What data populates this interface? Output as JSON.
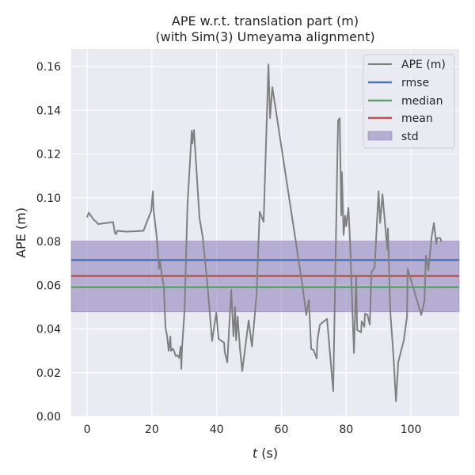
{
  "chart_data": {
    "type": "line",
    "title": "APE w.r.t. translation part (m)",
    "subtitle": "(with Sim(3) Umeyama alignment)",
    "xlabel_italic": "t",
    "xlabel_rest": " (s)",
    "ylabel": "APE (m)",
    "xlim": [
      -4.9,
      114.9
    ],
    "ylim": [
      0,
      0.168
    ],
    "xticks": [
      0,
      20,
      40,
      60,
      80,
      100
    ],
    "xtick_labels": [
      "0",
      "20",
      "40",
      "60",
      "80",
      "100"
    ],
    "yticks": [
      0,
      0.02,
      0.04,
      0.06,
      0.08,
      0.1,
      0.12,
      0.14,
      0.16
    ],
    "ytick_labels": [
      "0.00",
      "0.02",
      "0.04",
      "0.06",
      "0.08",
      "0.10",
      "0.12",
      "0.14",
      "0.16"
    ],
    "grid": true,
    "legend_position": "top-right",
    "legend": [
      "APE (m)",
      "rmse",
      "median",
      "mean",
      "std"
    ],
    "stats": {
      "rmse": 0.0715,
      "median": 0.0591,
      "mean": 0.0642,
      "std_low": 0.0479,
      "std_high": 0.0802
    },
    "colors": {
      "ape": "#808080",
      "rmse": "#4c72b0",
      "median": "#55a868",
      "mean": "#c44e52",
      "std": "#8172b2",
      "plot_bg": "#eaeaf2"
    },
    "series": [
      {
        "name": "APE (m)",
        "t": [
          0,
          0.5,
          1.2,
          2,
          2.7,
          3.4,
          8,
          8.6,
          9,
          9.3,
          12.2,
          17.4,
          19.8,
          20.3,
          20.5,
          21.5,
          22.2,
          22.5,
          23,
          23.7,
          24.2,
          24.7,
          25.2,
          25.7,
          25.9,
          26.6,
          27.4,
          27.9,
          28.4,
          28.9,
          29.1,
          29.3,
          30.1,
          31,
          32.3,
          32.5,
          33,
          34.7,
          35.7,
          37.2,
          38.6,
          39.9,
          40.6,
          42.3,
          42.5,
          43.3,
          44.5,
          45.2,
          45.7,
          46,
          46.5,
          47.2,
          47.9,
          49.9,
          50.9,
          51.8,
          52.3,
          53.3,
          54.5,
          56,
          56.5,
          57.2,
          66.5,
          67,
          67.7,
          68.5,
          69.2,
          69.9,
          70.9,
          71.1,
          71.9,
          74.1,
          76,
          77.5,
          78,
          78.5,
          78.7,
          79.2,
          79.7,
          80,
          80.7,
          81.2,
          82.4,
          83.1,
          83.4,
          84.6,
          84.8,
          85.6,
          85.8,
          86.6,
          87.3,
          87.8,
          88.8,
          90,
          90.5,
          91.2,
          92.7,
          92.9,
          93.6,
          94.6,
          95.4,
          96.1,
          97.8,
          98.8,
          99,
          103.2,
          104.2,
          104.6,
          105.4,
          106.4,
          107.1,
          107.8,
          108.1,
          109,
          109.5
        ],
        "values": [
          0.091,
          0.0932,
          0.0918,
          0.09,
          0.0892,
          0.088,
          0.0889,
          0.0838,
          0.0834,
          0.0849,
          0.0845,
          0.0849,
          0.094,
          0.103,
          0.0947,
          0.082,
          0.0675,
          0.071,
          0.0657,
          0.059,
          0.041,
          0.0366,
          0.03,
          0.0366,
          0.03,
          0.031,
          0.0276,
          0.028,
          0.0268,
          0.032,
          0.0218,
          0.031,
          0.049,
          0.0965,
          0.1306,
          0.1248,
          0.131,
          0.0907,
          0.082,
          0.0595,
          0.0345,
          0.0475,
          0.0355,
          0.0337,
          0.0294,
          0.0247,
          0.058,
          0.0366,
          0.05,
          0.0348,
          0.0457,
          0.031,
          0.0207,
          0.0439,
          0.032,
          0.0464,
          0.0555,
          0.0936,
          0.089,
          0.161,
          0.1364,
          0.1506,
          0.06,
          0.054,
          0.0464,
          0.0533,
          0.0308,
          0.0305,
          0.0265,
          0.0348,
          0.042,
          0.0446,
          0.0116,
          0.1353,
          0.1364,
          0.092,
          0.1117,
          0.083,
          0.0918,
          0.087,
          0.0954,
          0.0798,
          0.029,
          0.0638,
          0.0395,
          0.0385,
          0.0435,
          0.041,
          0.047,
          0.0464,
          0.042,
          0.066,
          0.068,
          0.103,
          0.0885,
          0.1016,
          0.0765,
          0.086,
          0.0486,
          0.0276,
          0.0069,
          0.025,
          0.0348,
          0.0457,
          0.0675,
          0.0464,
          0.053,
          0.0736,
          0.0668,
          0.082,
          0.0885,
          0.079,
          0.0816,
          0.0816,
          0.0798
        ]
      }
    ]
  }
}
